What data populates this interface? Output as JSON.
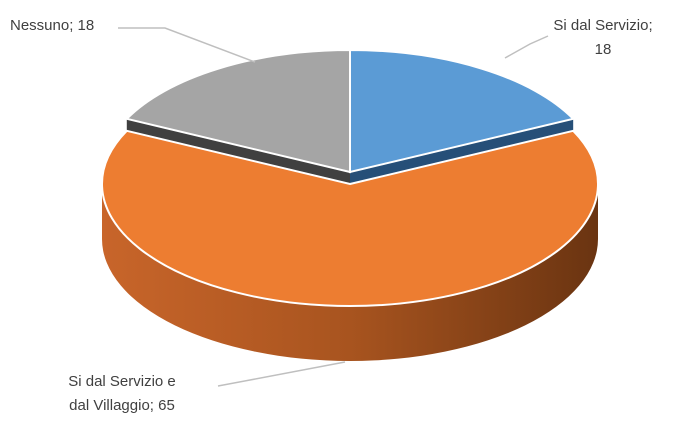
{
  "chart_data": {
    "type": "pie",
    "categories": [
      "Si dal Servizio",
      "Si dal Servizio e dal Villaggio",
      "Nessuno"
    ],
    "values": [
      18,
      65,
      18
    ],
    "colors": [
      "#5b9bd5",
      "#ed7d31",
      "#a5a5a5"
    ],
    "label_separator": ";"
  }
}
